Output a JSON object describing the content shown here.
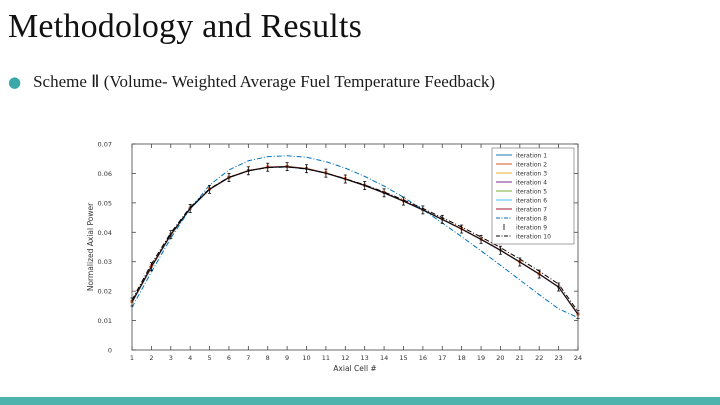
{
  "slide": {
    "title": "Methodology and Results",
    "bullet": "Scheme Ⅱ (Volume- Weighted Average Fuel Temperature Feedback)",
    "accent_color": "#4fb3ad"
  },
  "chart_data": {
    "type": "line",
    "title": "",
    "xlabel": "Axial Cell #",
    "ylabel": "Normalized Axial Power",
    "xlim": [
      1,
      24
    ],
    "ylim": [
      0,
      0.07
    ],
    "xticks": [
      "1",
      "2",
      "3",
      "4",
      "5",
      "6",
      "7",
      "8",
      "9",
      "10",
      "11",
      "12",
      "13",
      "14",
      "15",
      "16",
      "17",
      "18",
      "19",
      "20",
      "21",
      "22",
      "23",
      "24"
    ],
    "yticks": [
      "0",
      "0.01",
      "0.02",
      "0.03",
      "0.04",
      "0.05",
      "0.06",
      "0.07"
    ],
    "grid": false,
    "legend_position": "top-right",
    "x": [
      1,
      2,
      3,
      4,
      5,
      6,
      7,
      8,
      9,
      10,
      11,
      12,
      13,
      14,
      15,
      16,
      17,
      18,
      19,
      20,
      21,
      22,
      23,
      24
    ],
    "series": [
      {
        "name": "iteration 1",
        "color": "#1f77b4",
        "style": "solid",
        "values": [
          0.016,
          0.028,
          0.039,
          0.048,
          0.0545,
          0.0585,
          0.0608,
          0.062,
          0.0622,
          0.0615,
          0.06,
          0.058,
          0.0558,
          0.0533,
          0.0505,
          0.0475,
          0.0443,
          0.041,
          0.0375,
          0.0338,
          0.0298,
          0.0257,
          0.0213,
          0.012
        ]
      },
      {
        "name": "iteration 2",
        "color": "#d95319",
        "style": "solid",
        "values": [
          0.0165,
          0.0285,
          0.0393,
          0.0482,
          0.0547,
          0.0587,
          0.061,
          0.0622,
          0.0624,
          0.0617,
          0.0602,
          0.0582,
          0.056,
          0.0535,
          0.0507,
          0.0477,
          0.0445,
          0.0412,
          0.0377,
          0.034,
          0.03,
          0.0259,
          0.0215,
          0.0122
        ]
      },
      {
        "name": "iteration 3",
        "color": "#edb120",
        "style": "solid",
        "values": [
          0.0162,
          0.0282,
          0.0391,
          0.0481,
          0.0546,
          0.0586,
          0.0609,
          0.0621,
          0.0623,
          0.0616,
          0.0601,
          0.0581,
          0.0559,
          0.0534,
          0.0506,
          0.0476,
          0.0444,
          0.0411,
          0.0376,
          0.0339,
          0.0299,
          0.0258,
          0.0214,
          0.0121
        ]
      },
      {
        "name": "iteration 4",
        "color": "#7e2f8e",
        "style": "solid",
        "values": [
          0.0164,
          0.0284,
          0.0392,
          0.0482,
          0.0546,
          0.0586,
          0.0609,
          0.0621,
          0.0623,
          0.0616,
          0.0601,
          0.0581,
          0.0559,
          0.0534,
          0.0506,
          0.0476,
          0.0444,
          0.0411,
          0.0376,
          0.0339,
          0.0299,
          0.0258,
          0.0214,
          0.0121
        ]
      },
      {
        "name": "iteration 5",
        "color": "#77ac30",
        "style": "solid",
        "values": [
          0.0163,
          0.0283,
          0.0392,
          0.0481,
          0.0546,
          0.0586,
          0.0609,
          0.0621,
          0.0623,
          0.0616,
          0.0601,
          0.0581,
          0.0559,
          0.0534,
          0.0506,
          0.0476,
          0.0444,
          0.0411,
          0.0376,
          0.0339,
          0.0299,
          0.0258,
          0.0214,
          0.0121
        ]
      },
      {
        "name": "iteration 6",
        "color": "#4dbeee",
        "style": "solid",
        "values": [
          0.0163,
          0.0283,
          0.0392,
          0.0481,
          0.0546,
          0.0586,
          0.0609,
          0.0621,
          0.0623,
          0.0616,
          0.0601,
          0.0581,
          0.0559,
          0.0534,
          0.0506,
          0.0476,
          0.0444,
          0.0411,
          0.0376,
          0.0339,
          0.0299,
          0.0258,
          0.0214,
          0.0121
        ]
      },
      {
        "name": "iteration 7",
        "color": "#a2142f",
        "style": "solid",
        "values": [
          0.0163,
          0.0283,
          0.0392,
          0.0481,
          0.0546,
          0.0586,
          0.0609,
          0.0621,
          0.0623,
          0.0616,
          0.0601,
          0.0581,
          0.0559,
          0.0534,
          0.0506,
          0.0476,
          0.0444,
          0.0411,
          0.0376,
          0.0339,
          0.0299,
          0.0258,
          0.0214,
          0.0121
        ]
      },
      {
        "name": "iteration 8",
        "color": "#0072bd",
        "style": "dashdot",
        "values": [
          0.0145,
          0.0265,
          0.038,
          0.048,
          0.056,
          0.0612,
          0.0643,
          0.0657,
          0.066,
          0.0655,
          0.064,
          0.0618,
          0.059,
          0.0557,
          0.0519,
          0.0477,
          0.0432,
          0.0385,
          0.0337,
          0.0288,
          0.0238,
          0.0188,
          0.014,
          0.011
        ]
      },
      {
        "name": "iteration 9",
        "color": "#000000",
        "style": "errorbar",
        "values": [
          0.0163,
          0.0283,
          0.0392,
          0.0481,
          0.0546,
          0.0586,
          0.0609,
          0.0621,
          0.0623,
          0.0616,
          0.0601,
          0.0581,
          0.0559,
          0.0534,
          0.0506,
          0.0476,
          0.0444,
          0.0411,
          0.0376,
          0.0339,
          0.0299,
          0.0258,
          0.0214,
          0.0121
        ]
      },
      {
        "name": "iteration 10",
        "color": "#000000",
        "style": "dashdot",
        "values": [
          0.017,
          0.0292,
          0.0398,
          0.0485,
          0.0548,
          0.0587,
          0.0609,
          0.062,
          0.0622,
          0.0615,
          0.0601,
          0.0582,
          0.0561,
          0.0537,
          0.051,
          0.0481,
          0.045,
          0.0418,
          0.0384,
          0.0348,
          0.0309,
          0.0268,
          0.0224,
          0.013
        ]
      }
    ]
  }
}
